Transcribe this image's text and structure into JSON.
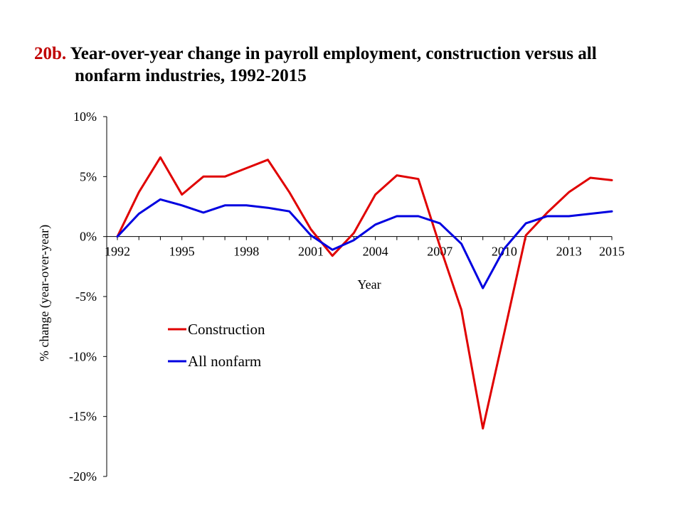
{
  "slide": {
    "title_number": "20b.",
    "title_line1": "Year-over-year change in payroll employment, construction versus all",
    "title_line2": "nonfarm industries, 1992-2015"
  },
  "chart_data": {
    "type": "line",
    "title": "Year-over-year change in payroll employment, construction versus all nonfarm industries, 1992-2015",
    "xlabel": "Year",
    "ylabel": "% change  (year-over-year)",
    "xlim": [
      1992,
      2015
    ],
    "ylim": [
      -20,
      10
    ],
    "x_ticks": [
      1992,
      1995,
      1998,
      2001,
      2004,
      2007,
      2010,
      2013,
      2015
    ],
    "y_ticks": [
      10,
      5,
      0,
      -5,
      -10,
      -15,
      -20
    ],
    "y_tick_labels": [
      "10%",
      "5%",
      "0%",
      "-5%",
      "-10%",
      "-15%",
      "-20%"
    ],
    "grid": false,
    "legend_position": "lower-left",
    "x": [
      1992,
      1993,
      1994,
      1995,
      1996,
      1997,
      1998,
      1999,
      2000,
      2001,
      2002,
      2003,
      2004,
      2005,
      2006,
      2007,
      2008,
      2009,
      2010,
      2011,
      2012,
      2013,
      2014,
      2015
    ],
    "series": [
      {
        "name": "Construction",
        "color": "#e00000",
        "values": [
          0.0,
          3.7,
          6.6,
          3.5,
          5.0,
          5.0,
          5.7,
          6.4,
          3.7,
          0.6,
          -1.6,
          0.3,
          3.5,
          5.1,
          4.8,
          -0.8,
          -6.1,
          -16.0,
          -8.0,
          0.1,
          2.0,
          3.7,
          4.9,
          4.7
        ]
      },
      {
        "name": "All nonfarm",
        "color": "#0000e0",
        "values": [
          0.0,
          1.9,
          3.1,
          2.6,
          2.0,
          2.6,
          2.6,
          2.4,
          2.1,
          0.1,
          -1.1,
          -0.3,
          1.0,
          1.7,
          1.7,
          1.1,
          -0.6,
          -4.3,
          -1.0,
          1.1,
          1.7,
          1.7,
          1.9,
          2.1
        ]
      }
    ]
  }
}
